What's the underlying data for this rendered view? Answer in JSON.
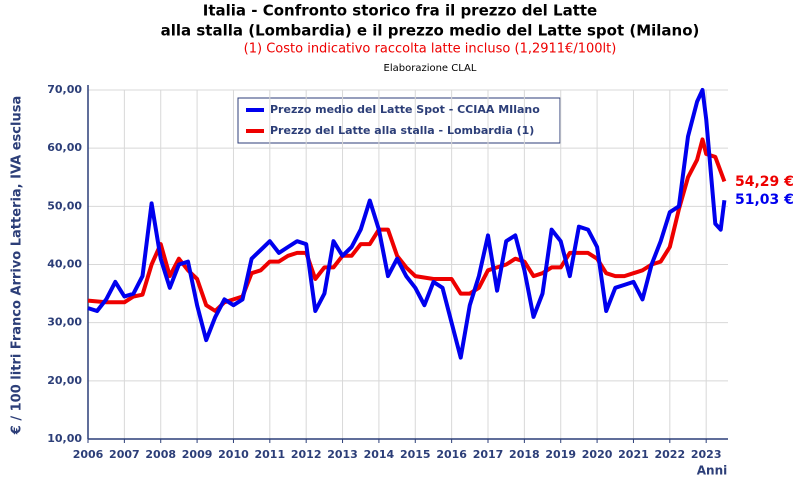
{
  "chart_data": {
    "type": "line",
    "title": [
      "Italia - Confronto storico fra il prezzo del Latte",
      "alla stalla (Lombardia) e il prezzo medio del Latte spot (Milano)"
    ],
    "subtitle": "(1) Costo indicativo raccolta latte incluso (1,2911€/100lt)",
    "note": "Elaborazione CLAL",
    "y_label": "€ / 100 litri Franco Arrivo Latteria, IVA esclusa",
    "x_label": "Anni",
    "xlim": [
      2006,
      2023.6
    ],
    "xticks": [
      2006,
      2007,
      2008,
      2009,
      2010,
      2011,
      2012,
      2013,
      2014,
      2015,
      2016,
      2017,
      2018,
      2019,
      2020,
      2021,
      2022,
      2023
    ],
    "ylim": [
      10,
      70
    ],
    "yticks": [
      {
        "value": 10,
        "label": "10,00"
      },
      {
        "value": 20,
        "label": "20,00"
      },
      {
        "value": 30,
        "label": "30,00"
      },
      {
        "value": 40,
        "label": "40,00"
      },
      {
        "value": 50,
        "label": "50,00"
      },
      {
        "value": 60,
        "label": "60,00"
      },
      {
        "value": 70,
        "label": "70,00"
      }
    ],
    "grid": true,
    "series": [
      {
        "name": "Prezzo medio del Latte Spot - CCIAA MIlano",
        "color": "#0000ee",
        "x": [
          2006.0,
          2006.25,
          2006.5,
          2006.75,
          2007.0,
          2007.25,
          2007.5,
          2007.75,
          2008.0,
          2008.25,
          2008.5,
          2008.75,
          2009.0,
          2009.25,
          2009.5,
          2009.75,
          2010.0,
          2010.25,
          2010.5,
          2010.75,
          2011.0,
          2011.25,
          2011.5,
          2011.75,
          2012.0,
          2012.25,
          2012.5,
          2012.75,
          2013.0,
          2013.25,
          2013.5,
          2013.75,
          2014.0,
          2014.25,
          2014.5,
          2014.75,
          2015.0,
          2015.25,
          2015.5,
          2015.75,
          2016.0,
          2016.25,
          2016.5,
          2016.75,
          2017.0,
          2017.25,
          2017.5,
          2017.75,
          2018.0,
          2018.25,
          2018.5,
          2018.75,
          2019.0,
          2019.25,
          2019.5,
          2019.75,
          2020.0,
          2020.25,
          2020.5,
          2020.75,
          2021.0,
          2021.25,
          2021.5,
          2021.75,
          2022.0,
          2022.25,
          2022.5,
          2022.75,
          2022.9,
          2023.0,
          2023.25,
          2023.4,
          2023.5
        ],
        "values": [
          32.5,
          32,
          34,
          37,
          34.5,
          35,
          38,
          50.5,
          41,
          36,
          40,
          40.5,
          33,
          27,
          31,
          34,
          33,
          34,
          41,
          42.5,
          44,
          42,
          43,
          44,
          43.5,
          32,
          35,
          44,
          41.5,
          43,
          46,
          51,
          46,
          38,
          41,
          38,
          36,
          33,
          37,
          36,
          30,
          24,
          33,
          38,
          45,
          35.5,
          44,
          45,
          39,
          31,
          35,
          46,
          44,
          38,
          46.5,
          46,
          43,
          32,
          36,
          36.5,
          37,
          34,
          40,
          44,
          49,
          50,
          62,
          68,
          70,
          65,
          47,
          46,
          51.03
        ]
      },
      {
        "name": "Prezzo del Latte alla stalla - Lombardia (1)",
        "color": "#ee0000",
        "x": [
          2006.0,
          2006.5,
          2007.0,
          2007.25,
          2007.5,
          2007.75,
          2008.0,
          2008.25,
          2008.5,
          2008.75,
          2009.0,
          2009.25,
          2009.5,
          2009.75,
          2010.0,
          2010.25,
          2010.5,
          2010.75,
          2011.0,
          2011.25,
          2011.5,
          2011.75,
          2012.0,
          2012.25,
          2012.5,
          2012.75,
          2013.0,
          2013.25,
          2013.5,
          2013.75,
          2014.0,
          2014.25,
          2014.5,
          2014.75,
          2015.0,
          2015.5,
          2016.0,
          2016.25,
          2016.5,
          2016.75,
          2017.0,
          2017.25,
          2017.5,
          2017.75,
          2018.0,
          2018.25,
          2018.5,
          2018.75,
          2019.0,
          2019.25,
          2019.5,
          2019.75,
          2020.0,
          2020.25,
          2020.5,
          2020.75,
          2021.0,
          2021.25,
          2021.5,
          2021.75,
          2022.0,
          2022.25,
          2022.5,
          2022.75,
          2022.9,
          2023.0,
          2023.25,
          2023.5
        ],
        "values": [
          33.8,
          33.5,
          33.5,
          34.5,
          34.8,
          40,
          43.5,
          38,
          41,
          39,
          37.5,
          33,
          32,
          33.5,
          34,
          34.5,
          38.5,
          39,
          40.5,
          40.5,
          41.5,
          42,
          42,
          37.5,
          39.5,
          39.5,
          41.5,
          41.5,
          43.5,
          43.5,
          46,
          46,
          41.5,
          39.5,
          38,
          37.5,
          37.5,
          35,
          35,
          36,
          39,
          39.5,
          40,
          41,
          40.5,
          38,
          38.5,
          39.5,
          39.5,
          42,
          42,
          42,
          41,
          38.5,
          38,
          38,
          38.5,
          39,
          40,
          40.5,
          43,
          49.5,
          55,
          58,
          61.5,
          59,
          58.5,
          54.29
        ]
      }
    ],
    "annotations": [
      {
        "text": "54,29 €",
        "value": 54.29,
        "color": "#ee0000"
      },
      {
        "text": "51,03 €",
        "value": 51.03,
        "color": "#0000ee"
      }
    ]
  }
}
